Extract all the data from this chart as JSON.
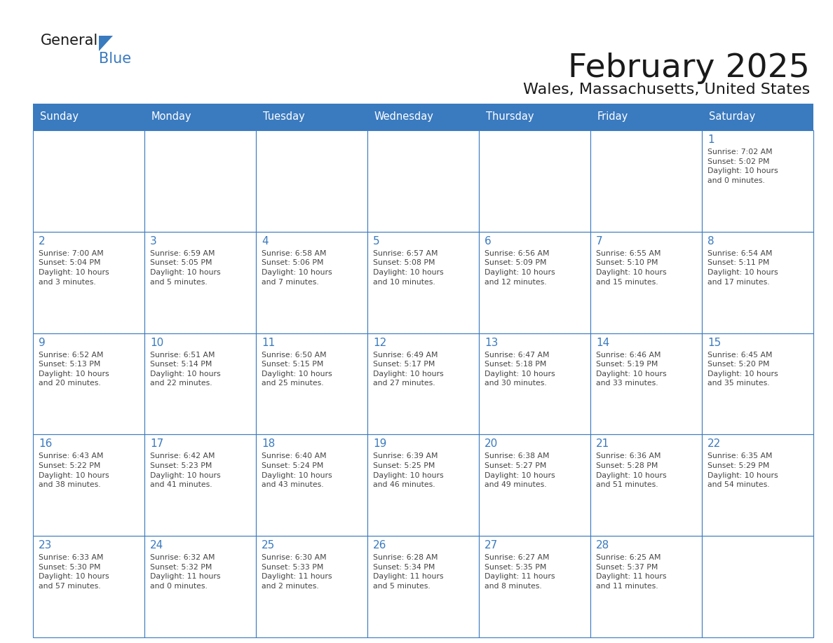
{
  "title": "February 2025",
  "subtitle": "Wales, Massachusetts, United States",
  "header_color": "#3a7abf",
  "header_text_color": "#ffffff",
  "cell_bg_color": "#ffffff",
  "empty_cell_bg_color": "#ffffff",
  "cell_border_color": "#3a7abf",
  "day_number_color": "#3a7abf",
  "text_color": "#444444",
  "background_color": "#ffffff",
  "days_of_week": [
    "Sunday",
    "Monday",
    "Tuesday",
    "Wednesday",
    "Thursday",
    "Friday",
    "Saturday"
  ],
  "weeks": [
    [
      {
        "day": null,
        "info": ""
      },
      {
        "day": null,
        "info": ""
      },
      {
        "day": null,
        "info": ""
      },
      {
        "day": null,
        "info": ""
      },
      {
        "day": null,
        "info": ""
      },
      {
        "day": null,
        "info": ""
      },
      {
        "day": 1,
        "info": "Sunrise: 7:02 AM\nSunset: 5:02 PM\nDaylight: 10 hours\nand 0 minutes."
      }
    ],
    [
      {
        "day": 2,
        "info": "Sunrise: 7:00 AM\nSunset: 5:04 PM\nDaylight: 10 hours\nand 3 minutes."
      },
      {
        "day": 3,
        "info": "Sunrise: 6:59 AM\nSunset: 5:05 PM\nDaylight: 10 hours\nand 5 minutes."
      },
      {
        "day": 4,
        "info": "Sunrise: 6:58 AM\nSunset: 5:06 PM\nDaylight: 10 hours\nand 7 minutes."
      },
      {
        "day": 5,
        "info": "Sunrise: 6:57 AM\nSunset: 5:08 PM\nDaylight: 10 hours\nand 10 minutes."
      },
      {
        "day": 6,
        "info": "Sunrise: 6:56 AM\nSunset: 5:09 PM\nDaylight: 10 hours\nand 12 minutes."
      },
      {
        "day": 7,
        "info": "Sunrise: 6:55 AM\nSunset: 5:10 PM\nDaylight: 10 hours\nand 15 minutes."
      },
      {
        "day": 8,
        "info": "Sunrise: 6:54 AM\nSunset: 5:11 PM\nDaylight: 10 hours\nand 17 minutes."
      }
    ],
    [
      {
        "day": 9,
        "info": "Sunrise: 6:52 AM\nSunset: 5:13 PM\nDaylight: 10 hours\nand 20 minutes."
      },
      {
        "day": 10,
        "info": "Sunrise: 6:51 AM\nSunset: 5:14 PM\nDaylight: 10 hours\nand 22 minutes."
      },
      {
        "day": 11,
        "info": "Sunrise: 6:50 AM\nSunset: 5:15 PM\nDaylight: 10 hours\nand 25 minutes."
      },
      {
        "day": 12,
        "info": "Sunrise: 6:49 AM\nSunset: 5:17 PM\nDaylight: 10 hours\nand 27 minutes."
      },
      {
        "day": 13,
        "info": "Sunrise: 6:47 AM\nSunset: 5:18 PM\nDaylight: 10 hours\nand 30 minutes."
      },
      {
        "day": 14,
        "info": "Sunrise: 6:46 AM\nSunset: 5:19 PM\nDaylight: 10 hours\nand 33 minutes."
      },
      {
        "day": 15,
        "info": "Sunrise: 6:45 AM\nSunset: 5:20 PM\nDaylight: 10 hours\nand 35 minutes."
      }
    ],
    [
      {
        "day": 16,
        "info": "Sunrise: 6:43 AM\nSunset: 5:22 PM\nDaylight: 10 hours\nand 38 minutes."
      },
      {
        "day": 17,
        "info": "Sunrise: 6:42 AM\nSunset: 5:23 PM\nDaylight: 10 hours\nand 41 minutes."
      },
      {
        "day": 18,
        "info": "Sunrise: 6:40 AM\nSunset: 5:24 PM\nDaylight: 10 hours\nand 43 minutes."
      },
      {
        "day": 19,
        "info": "Sunrise: 6:39 AM\nSunset: 5:25 PM\nDaylight: 10 hours\nand 46 minutes."
      },
      {
        "day": 20,
        "info": "Sunrise: 6:38 AM\nSunset: 5:27 PM\nDaylight: 10 hours\nand 49 minutes."
      },
      {
        "day": 21,
        "info": "Sunrise: 6:36 AM\nSunset: 5:28 PM\nDaylight: 10 hours\nand 51 minutes."
      },
      {
        "day": 22,
        "info": "Sunrise: 6:35 AM\nSunset: 5:29 PM\nDaylight: 10 hours\nand 54 minutes."
      }
    ],
    [
      {
        "day": 23,
        "info": "Sunrise: 6:33 AM\nSunset: 5:30 PM\nDaylight: 10 hours\nand 57 minutes."
      },
      {
        "day": 24,
        "info": "Sunrise: 6:32 AM\nSunset: 5:32 PM\nDaylight: 11 hours\nand 0 minutes."
      },
      {
        "day": 25,
        "info": "Sunrise: 6:30 AM\nSunset: 5:33 PM\nDaylight: 11 hours\nand 2 minutes."
      },
      {
        "day": 26,
        "info": "Sunrise: 6:28 AM\nSunset: 5:34 PM\nDaylight: 11 hours\nand 5 minutes."
      },
      {
        "day": 27,
        "info": "Sunrise: 6:27 AM\nSunset: 5:35 PM\nDaylight: 11 hours\nand 8 minutes."
      },
      {
        "day": 28,
        "info": "Sunrise: 6:25 AM\nSunset: 5:37 PM\nDaylight: 11 hours\nand 11 minutes."
      },
      {
        "day": null,
        "info": ""
      }
    ]
  ],
  "logo_general_color": "#1a1a1a",
  "logo_blue_color": "#3a7abf",
  "title_fontsize": 34,
  "subtitle_fontsize": 16,
  "header_fontsize": 10.5,
  "day_number_fontsize": 11,
  "cell_text_fontsize": 7.8
}
